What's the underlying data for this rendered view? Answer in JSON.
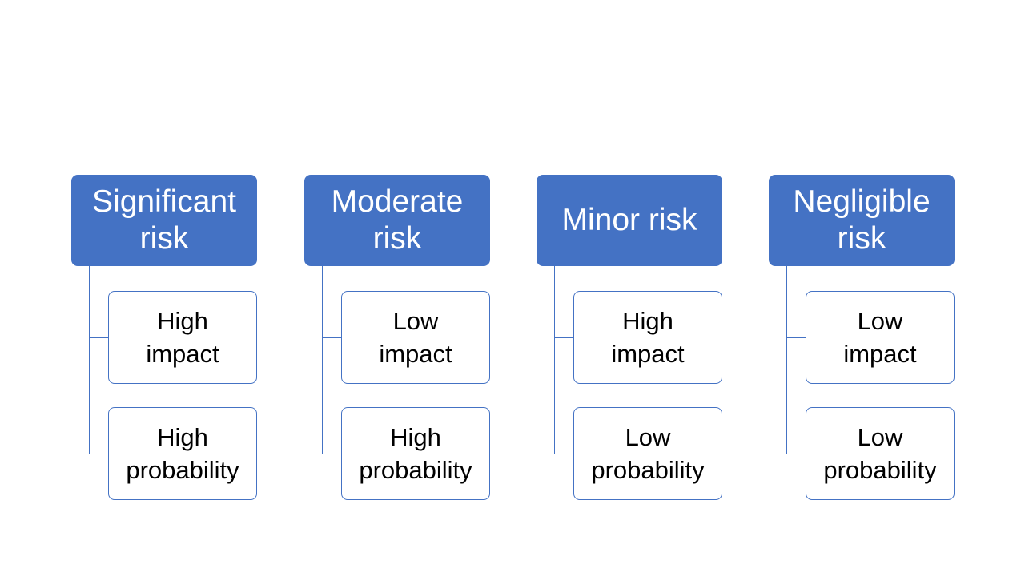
{
  "colors": {
    "header_fill": "#4472c4",
    "child_border": "#4472c4",
    "header_text": "#ffffff",
    "child_text": "#000000"
  },
  "groups": [
    {
      "header": [
        "Significant",
        "risk"
      ],
      "children": [
        [
          "High",
          "impact"
        ],
        [
          "High",
          "probability"
        ]
      ]
    },
    {
      "header": [
        "Moderate",
        "risk"
      ],
      "children": [
        [
          "Low",
          "impact"
        ],
        [
          "High",
          "probability"
        ]
      ]
    },
    {
      "header": [
        "Minor risk"
      ],
      "children": [
        [
          "High",
          "impact"
        ],
        [
          "Low",
          "probability"
        ]
      ]
    },
    {
      "header": [
        "Negligible",
        "risk"
      ],
      "children": [
        [
          "Low",
          "impact"
        ],
        [
          "Low",
          "probability"
        ]
      ]
    }
  ]
}
